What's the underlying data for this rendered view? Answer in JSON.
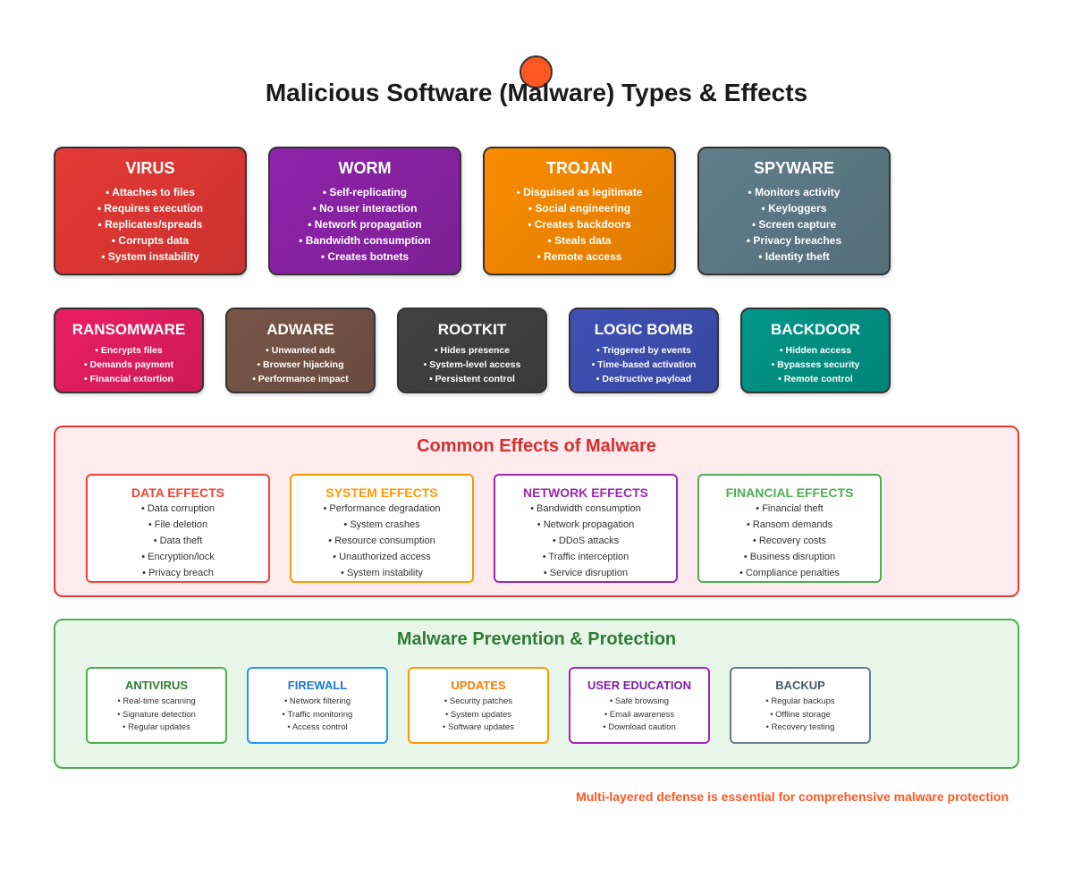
{
  "title": "Malicious Software (Malware) Types & Effects",
  "malware_types": [
    {
      "name": "VIRUS",
      "color": "#e53935",
      "bullets": [
        "• Attaches to files",
        "• Requires execution",
        "• Replicates/spreads",
        "• Corrupts data",
        "• System instability"
      ]
    },
    {
      "name": "WORM",
      "color": "#8e24aa",
      "bullets": [
        "• Self-replicating",
        "• No user interaction",
        "• Network propagation",
        "• Bandwidth consumption",
        "• Creates botnets"
      ]
    },
    {
      "name": "TROJAN",
      "color": "#fb8c00",
      "bullets": [
        "• Disguised as legitimate",
        "• Social engineering",
        "• Creates backdoors",
        "• Steals data",
        "• Remote access"
      ]
    },
    {
      "name": "SPYWARE",
      "color": "#607d8b",
      "bullets": [
        "• Monitors activity",
        "• Keyloggers",
        "• Screen capture",
        "• Privacy breaches",
        "• Identity theft"
      ]
    },
    {
      "name": "RANSOMWARE",
      "color": "#e91e63",
      "bullets": [
        "• Encrypts files",
        "• Demands payment",
        "• Financial extortion"
      ]
    },
    {
      "name": "ADWARE",
      "color": "#795548",
      "bullets": [
        "• Unwanted ads",
        "• Browser hijacking",
        "• Performance impact"
      ]
    },
    {
      "name": "ROOTKIT",
      "color": "#424242",
      "bullets": [
        "• Hides presence",
        "• System-level access",
        "• Persistent control"
      ]
    },
    {
      "name": "LOGIC BOMB",
      "color": "#3f51b5",
      "bullets": [
        "• Triggered by events",
        "• Time-based activation",
        "• Destructive payload"
      ]
    },
    {
      "name": "BACKDOOR",
      "color": "#009688",
      "bullets": [
        "• Hidden access",
        "• Bypasses security",
        "• Remote control"
      ]
    }
  ],
  "effects": {
    "title": "Common Effects of Malware",
    "title_color": "#d32f2f",
    "border_color": "#e53935",
    "background": "#ffebee",
    "categories": [
      {
        "title": "DATA EFFECTS",
        "color": "#f44336",
        "items": [
          "• Data corruption",
          "• File deletion",
          "• Data theft",
          "• Encryption/lock",
          "• Privacy breach"
        ]
      },
      {
        "title": "SYSTEM EFFECTS",
        "color": "#ff9800",
        "items": [
          "• Performance degradation",
          "• System crashes",
          "• Resource consumption",
          "• Unauthorized access",
          "• System instability"
        ]
      },
      {
        "title": "NETWORK EFFECTS",
        "color": "#9c27b0",
        "items": [
          "• Bandwidth consumption",
          "• Network propagation",
          "• DDoS attacks",
          "• Traffic interception",
          "• Service disruption"
        ]
      },
      {
        "title": "FINANCIAL EFFECTS",
        "color": "#4caf50",
        "items": [
          "• Financial theft",
          "• Ransom demands",
          "• Recovery costs",
          "• Business disruption",
          "• Compliance penalties"
        ]
      }
    ]
  },
  "prevention": {
    "title": "Malware Prevention & Protection",
    "title_color": "#2e7d32",
    "border_color": "#4caf50",
    "background": "#e8f5e9",
    "categories": [
      {
        "title": "ANTIVIRUS",
        "color": "#4caf50",
        "title_color": "#2e7d32",
        "items": [
          "• Real-time scanning",
          "• Signature detection",
          "• Regular updates"
        ]
      },
      {
        "title": "FIREWALL",
        "color": "#2196f3",
        "title_color": "#1976d2",
        "items": [
          "• Network filtering",
          "• Traffic monitoring",
          "• Access control"
        ]
      },
      {
        "title": "UPDATES",
        "color": "#ff9800",
        "title_color": "#f57c00",
        "items": [
          "• Security patches",
          "• System updates",
          "• Software updates"
        ]
      },
      {
        "title": "USER EDUCATION",
        "color": "#9c27b0",
        "title_color": "#7b1fa2",
        "items": [
          "• Safe browsing",
          "• Email awareness",
          "• Download caution"
        ]
      },
      {
        "title": "BACKUP",
        "color": "#607d8b",
        "title_color": "#455a64",
        "items": [
          "• Regular backups",
          "• Offline storage",
          "• Recovery testing"
        ]
      }
    ]
  },
  "footer_note": "Multi-layered defense is essential for comprehensive malware protection",
  "footer_color": "#ff5722"
}
